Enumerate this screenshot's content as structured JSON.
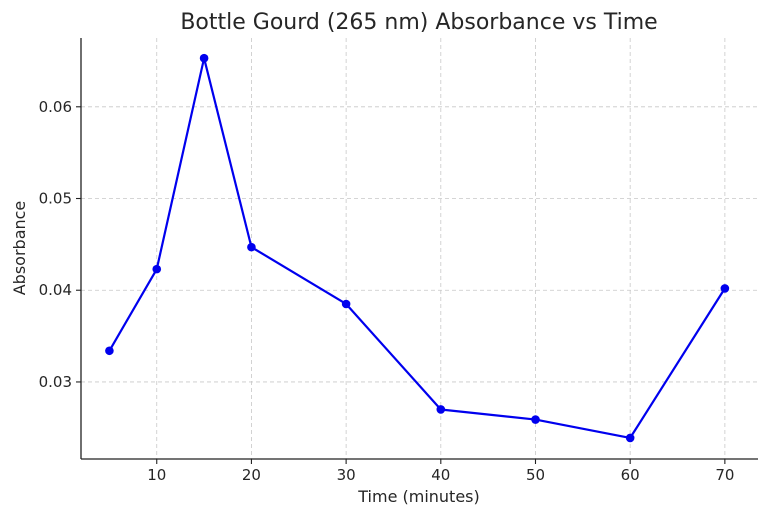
{
  "chart_data": {
    "type": "line",
    "title": "Bottle Gourd (265 nm) Absorbance vs Time",
    "xlabel": "Time (minutes)",
    "ylabel": "Absorbance",
    "xlim": [
      2,
      73.5
    ],
    "ylim": [
      0.0216,
      0.0675
    ],
    "x_ticks": [
      10,
      20,
      30,
      40,
      50,
      60,
      70
    ],
    "x_tick_labels": [
      "10",
      "20",
      "30",
      "40",
      "50",
      "60",
      "70"
    ],
    "y_ticks": [
      0.03,
      0.04,
      0.05,
      0.06
    ],
    "y_tick_labels": [
      "0.03",
      "0.04",
      "0.05",
      "0.06"
    ],
    "grid": true,
    "legend": "none",
    "series": [
      {
        "color": "#0000ee",
        "marker": "circle",
        "x": [
          5,
          10,
          15,
          20,
          30,
          40,
          50,
          60,
          70
        ],
        "y": [
          0.0334,
          0.0423,
          0.0653,
          0.0447,
          0.0385,
          0.027,
          0.0259,
          0.0239,
          0.0402
        ]
      }
    ]
  }
}
